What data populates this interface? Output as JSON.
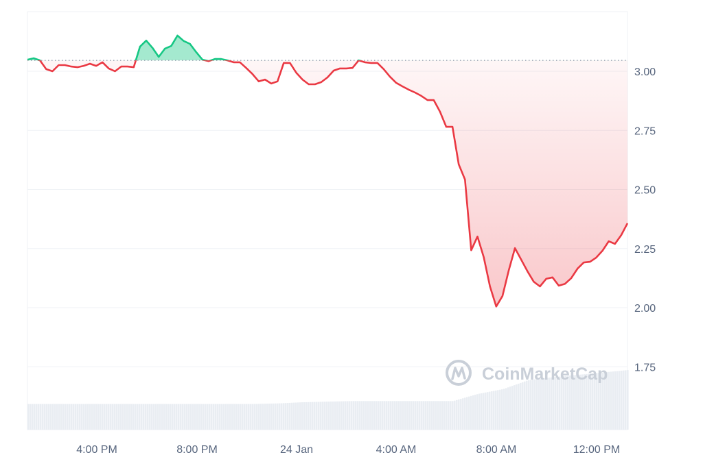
{
  "chart_data": {
    "type": "line",
    "title": "",
    "xlabel": "",
    "ylabel": "",
    "x_tick_labels": [
      "4:00 PM",
      "8:00 PM",
      "24 Jan",
      "4:00 AM",
      "8:00 AM",
      "12:00 PM"
    ],
    "y_tick_labels": [
      "3.00",
      "2.75",
      "2.50",
      "2.25",
      "2.00",
      "1.75"
    ],
    "y_ticks": [
      3.0,
      2.75,
      2.5,
      2.25,
      2.0,
      1.75
    ],
    "ylim": [
      1.48,
      3.25
    ],
    "grid": "horizontal",
    "reference_price": 3.046,
    "colors": {
      "up": "#16c784",
      "down": "#ea3943",
      "up_fill": "#b5ebd5",
      "down_fill": "#f6c8cb",
      "grid": "#eff2f5",
      "volume": "#e9edf2",
      "text": "#58667e"
    },
    "watermark": "CoinMarketCap",
    "x": [
      "23 Jan 1:15 PM",
      "23 Jan 1:30 PM",
      "23 Jan 1:45 PM",
      "23 Jan 2:00 PM",
      "23 Jan 2:15 PM",
      "23 Jan 2:30 PM",
      "23 Jan 2:45 PM",
      "23 Jan 3:00 PM",
      "23 Jan 3:15 PM",
      "23 Jan 3:30 PM",
      "23 Jan 3:45 PM",
      "23 Jan 4:00 PM",
      "23 Jan 4:15 PM",
      "23 Jan 4:30 PM",
      "23 Jan 4:45 PM",
      "23 Jan 5:00 PM",
      "23 Jan 5:15 PM",
      "23 Jan 5:30 PM",
      "23 Jan 5:45 PM",
      "23 Jan 6:00 PM",
      "23 Jan 6:15 PM",
      "23 Jan 6:30 PM",
      "23 Jan 6:45 PM",
      "23 Jan 7:00 PM",
      "23 Jan 7:15 PM",
      "23 Jan 7:30 PM",
      "23 Jan 7:45 PM",
      "23 Jan 8:00 PM",
      "23 Jan 8:15 PM",
      "23 Jan 8:30 PM",
      "23 Jan 8:45 PM",
      "23 Jan 9:00 PM",
      "23 Jan 9:15 PM",
      "23 Jan 9:30 PM",
      "23 Jan 9:45 PM",
      "23 Jan 10:00 PM",
      "23 Jan 10:15 PM",
      "23 Jan 10:30 PM",
      "23 Jan 10:45 PM",
      "23 Jan 11:00 PM",
      "23 Jan 11:15 PM",
      "23 Jan 11:30 PM",
      "23 Jan 11:45 PM",
      "24 Jan 12:00 AM",
      "24 Jan 12:15 AM",
      "24 Jan 12:30 AM",
      "24 Jan 12:45 AM",
      "24 Jan 1:00 AM",
      "24 Jan 1:15 AM",
      "24 Jan 1:30 AM",
      "24 Jan 1:45 AM",
      "24 Jan 2:00 AM",
      "24 Jan 2:15 AM",
      "24 Jan 2:30 AM",
      "24 Jan 2:45 AM",
      "24 Jan 3:00 AM",
      "24 Jan 3:15 AM",
      "24 Jan 3:30 AM",
      "24 Jan 3:45 AM",
      "24 Jan 4:00 AM",
      "24 Jan 4:15 AM",
      "24 Jan 4:30 AM",
      "24 Jan 4:45 AM",
      "24 Jan 5:00 AM",
      "24 Jan 5:15 AM",
      "24 Jan 5:30 AM",
      "24 Jan 5:45 AM",
      "24 Jan 6:00 AM",
      "24 Jan 6:15 AM",
      "24 Jan 6:30 AM",
      "24 Jan 6:45 AM",
      "24 Jan 7:00 AM",
      "24 Jan 7:15 AM",
      "24 Jan 7:30 AM",
      "24 Jan 7:45 AM",
      "24 Jan 8:00 AM",
      "24 Jan 8:15 AM",
      "24 Jan 8:30 AM",
      "24 Jan 8:45 AM",
      "24 Jan 9:00 AM",
      "24 Jan 9:15 AM",
      "24 Jan 9:30 AM",
      "24 Jan 9:45 AM",
      "24 Jan 10:00 AM",
      "24 Jan 10:15 AM",
      "24 Jan 10:30 AM",
      "24 Jan 10:45 AM",
      "24 Jan 11:00 AM",
      "24 Jan 11:15 AM",
      "24 Jan 11:30 AM",
      "24 Jan 11:45 AM",
      "24 Jan 12:00 PM",
      "24 Jan 12:15 PM",
      "24 Jan 12:30 PM",
      "24 Jan 12:45 PM",
      "24 Jan 1:00 PM",
      "24 Jan 1:15 PM"
    ],
    "values": [
      3.049,
      3.055,
      3.046,
      3.009,
      3.0,
      3.026,
      3.026,
      3.02,
      3.017,
      3.023,
      3.032,
      3.023,
      3.038,
      3.012,
      3.0,
      3.02,
      3.02,
      3.017,
      3.104,
      3.13,
      3.099,
      3.061,
      3.096,
      3.107,
      3.151,
      3.128,
      3.116,
      3.081,
      3.049,
      3.043,
      3.052,
      3.052,
      3.046,
      3.038,
      3.038,
      3.014,
      2.988,
      2.957,
      2.965,
      2.948,
      2.957,
      3.035,
      3.035,
      2.994,
      2.965,
      2.945,
      2.945,
      2.954,
      2.974,
      3.003,
      3.012,
      3.012,
      3.014,
      3.046,
      3.038,
      3.035,
      3.035,
      3.009,
      2.977,
      2.951,
      2.936,
      2.922,
      2.91,
      2.896,
      2.878,
      2.878,
      2.829,
      2.765,
      2.765,
      2.606,
      2.542,
      2.243,
      2.301,
      2.214,
      2.09,
      2.005,
      2.049,
      2.157,
      2.252,
      2.203,
      2.154,
      2.11,
      2.09,
      2.122,
      2.128,
      2.093,
      2.101,
      2.125,
      2.165,
      2.191,
      2.194,
      2.212,
      2.241,
      2.281,
      2.27,
      2.307,
      2.357
    ],
    "volume_relative": [
      0.43,
      0.43,
      0.43,
      0.43,
      0.43,
      0.43,
      0.43,
      0.43,
      0.43,
      0.43,
      0.44,
      0.46,
      0.47,
      0.48,
      0.48,
      0.48,
      0.48,
      0.48,
      0.6,
      0.68,
      0.83,
      0.88,
      0.92,
      0.96,
      1.0
    ]
  }
}
